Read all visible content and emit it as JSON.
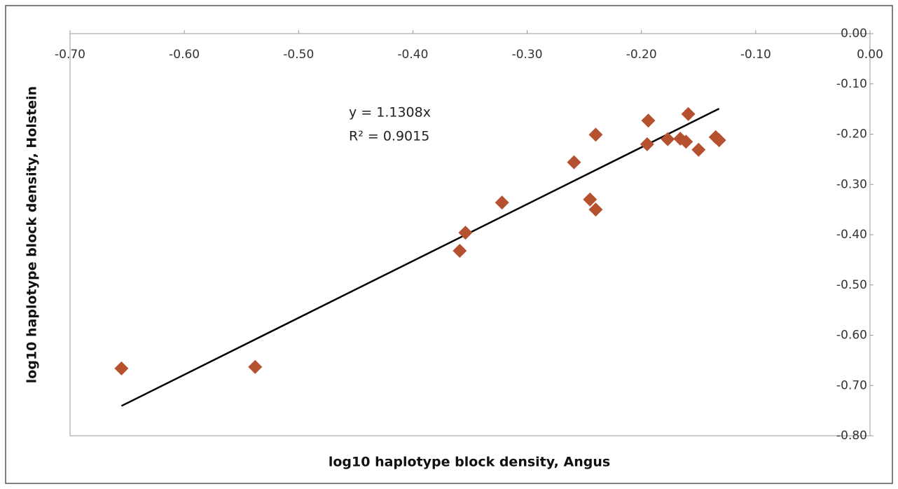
{
  "chart_data": {
    "type": "scatter",
    "x_label": "log10 haplotype block density, Angus",
    "y_label": "log10 haplotype block density, Holstein",
    "x": [
      -0.655,
      -0.538,
      -0.359,
      -0.354,
      -0.322,
      -0.259,
      -0.245,
      -0.24,
      -0.24,
      -0.194,
      -0.195,
      -0.177,
      -0.166,
      -0.161,
      -0.159,
      -0.15,
      -0.135,
      -0.132
    ],
    "series": [
      {
        "color": "#b5512f",
        "values": [
          -0.666,
          -0.663,
          -0.432,
          -0.396,
          -0.336,
          -0.256,
          -0.33,
          -0.35,
          -0.201,
          -0.173,
          -0.22,
          -0.21,
          -0.209,
          -0.215,
          -0.16,
          -0.231,
          -0.206,
          -0.212
        ]
      }
    ],
    "trendline": {
      "slope": 1.1308,
      "x": [
        -0.655,
        -0.132
      ],
      "color": "#000000"
    },
    "annotations": [
      "y = 1.1308x",
      "R² = 0.9015"
    ],
    "xlim": [
      -0.7,
      0
    ],
    "ylim": [
      -0.8,
      0
    ],
    "xticks": [
      {
        "value": -0.7,
        "label": "-0.70"
      },
      {
        "value": -0.6,
        "label": "-0.60"
      },
      {
        "value": -0.5,
        "label": "-0.50"
      },
      {
        "value": -0.4,
        "label": "-0.40"
      },
      {
        "value": -0.3,
        "label": "-0.30"
      },
      {
        "value": -0.2,
        "label": "-0.20"
      },
      {
        "value": -0.1,
        "label": "-0.10"
      },
      {
        "value": 0,
        "label": "0.00"
      }
    ],
    "yticks": [
      {
        "value": 0,
        "label": "0.00"
      },
      {
        "value": -0.1,
        "label": "-0.10"
      },
      {
        "value": -0.2,
        "label": "-0.20"
      },
      {
        "value": -0.3,
        "label": "-0.30"
      },
      {
        "value": -0.4,
        "label": "-0.40"
      },
      {
        "value": -0.5,
        "label": "-0.50"
      },
      {
        "value": -0.6,
        "label": "-0.60"
      },
      {
        "value": -0.7,
        "label": "-0.70"
      },
      {
        "value": -0.8,
        "label": "-0.80"
      }
    ],
    "grid": false
  }
}
